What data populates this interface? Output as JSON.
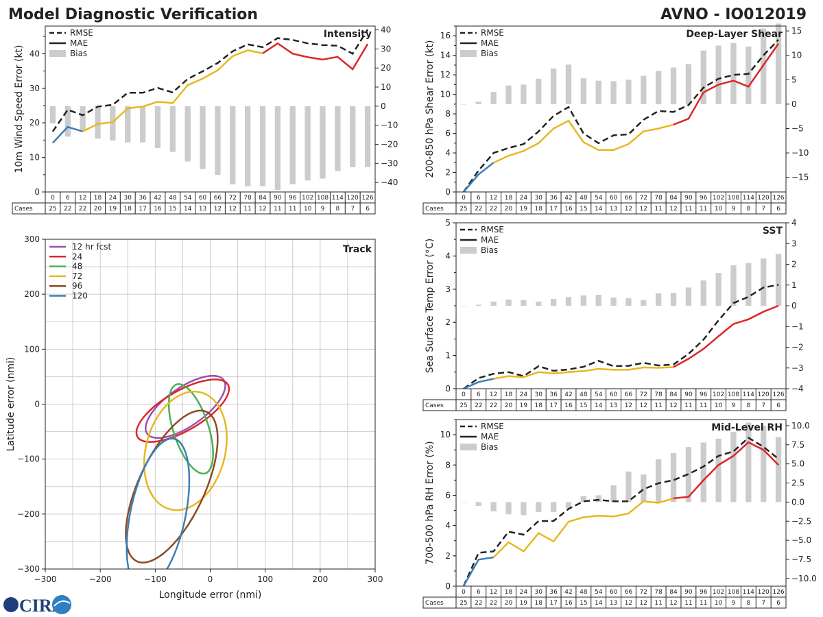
{
  "header": {
    "title": "Model Diagnostic Verification",
    "model_id": "AVNO - IO012019"
  },
  "colors": {
    "red": "#dc2626",
    "yellow": "#e6b81f",
    "blue": "#3a7fb8",
    "bias": "#cccccc",
    "rmse": "#222222",
    "purple": "#9a4fb1",
    "green": "#4caf50",
    "brown": "#8b4a24",
    "track_blue": "#3a7fb8"
  },
  "legend": {
    "rmse": "RMSE",
    "mae": "MAE",
    "bias": "Bias"
  },
  "cases_label": "Cases",
  "leads": [
    0,
    6,
    12,
    18,
    24,
    30,
    36,
    42,
    48,
    54,
    60,
    66,
    72,
    78,
    84,
    90,
    96,
    102,
    108,
    114,
    120,
    126
  ],
  "cases": [
    25,
    22,
    22,
    20,
    19,
    18,
    17,
    16,
    15,
    14,
    13,
    12,
    12,
    11,
    12,
    11,
    11,
    10,
    9,
    8,
    7,
    6
  ],
  "logo": {
    "text": "CIRA"
  },
  "chart_data": [
    {
      "id": "intensity",
      "type": "line",
      "title": "Intensity",
      "ylabel": "10m Wind Speed Error (kt)",
      "ylim": [
        0,
        48
      ],
      "yticks": [
        0,
        10,
        20,
        30,
        40
      ],
      "y2lim": [
        -45,
        42
      ],
      "y2ticks": [
        -40,
        -30,
        -20,
        -10,
        0,
        10,
        20,
        30,
        40
      ],
      "rmse": [
        17.5,
        23.8,
        22.2,
        24.7,
        25.2,
        28.7,
        28.7,
        30.1,
        28.8,
        32.7,
        34.9,
        37.3,
        40.7,
        42.7,
        41.9,
        44.5,
        44.0,
        43.0,
        42.5,
        42.3,
        40.0,
        47.0
      ],
      "mae": [
        14.2,
        18.8,
        17.5,
        19.7,
        20.2,
        24.2,
        24.7,
        26.1,
        25.7,
        30.9,
        32.8,
        35.2,
        39.3,
        41.0,
        40.1,
        43.0,
        40.0,
        39.0,
        38.3,
        39.1,
        35.5,
        42.8
      ],
      "bias": [
        -9,
        -16,
        -13,
        -17,
        -18,
        -19,
        -19,
        -22,
        -24,
        -29,
        -33,
        -36,
        -41,
        -42,
        -42,
        -44,
        -41,
        -39,
        -38,
        -34,
        -32,
        -32
      ]
    },
    {
      "id": "shear",
      "type": "line",
      "title": "Deep-Layer Shear",
      "ylabel": "200-850 hPa Shear Error (kt)",
      "ylim": [
        0,
        17
      ],
      "yticks": [
        0,
        2,
        4,
        6,
        8,
        10,
        12,
        14,
        16
      ],
      "y2lim": [
        -18,
        16
      ],
      "y2ticks": [
        -15,
        -10,
        -5,
        0,
        5,
        10,
        15
      ],
      "rmse": [
        0.0,
        2.2,
        4.0,
        4.5,
        4.9,
        6.2,
        7.8,
        8.7,
        6.0,
        5.0,
        5.8,
        5.9,
        7.4,
        8.3,
        8.2,
        8.9,
        10.7,
        11.6,
        12.0,
        12.1,
        14.0,
        15.6
      ],
      "mae": [
        0.0,
        1.8,
        3.0,
        3.7,
        4.2,
        5.0,
        6.5,
        7.3,
        5.1,
        4.3,
        4.3,
        4.9,
        6.2,
        6.5,
        6.9,
        7.5,
        10.2,
        11.0,
        11.4,
        10.8,
        13.0,
        15.2
      ],
      "bias": [
        0,
        0.5,
        2.5,
        3.8,
        4.0,
        5.2,
        7.3,
        8.1,
        5.3,
        4.8,
        4.7,
        5.0,
        5.8,
        6.8,
        7.5,
        8.2,
        11.0,
        12.0,
        12.5,
        11.8,
        15.5,
        16.5
      ]
    },
    {
      "id": "sst",
      "type": "line",
      "title": "SST",
      "ylabel": "Sea Surface Temp Error (°C)",
      "ylim": [
        0,
        5
      ],
      "yticks": [
        0,
        1,
        2,
        3,
        4,
        5
      ],
      "y2lim": [
        -4,
        4
      ],
      "y2ticks": [
        -4,
        -3,
        -2,
        -1,
        0,
        1,
        2,
        3,
        4
      ],
      "rmse": [
        0.0,
        0.32,
        0.45,
        0.5,
        0.38,
        0.68,
        0.54,
        0.58,
        0.66,
        0.84,
        0.68,
        0.69,
        0.78,
        0.7,
        0.73,
        1.05,
        1.48,
        2.06,
        2.58,
        2.77,
        3.05,
        3.13
      ],
      "mae": [
        0.0,
        0.2,
        0.3,
        0.38,
        0.35,
        0.5,
        0.46,
        0.5,
        0.53,
        0.6,
        0.57,
        0.57,
        0.64,
        0.63,
        0.65,
        0.9,
        1.2,
        1.58,
        1.95,
        2.09,
        2.32,
        2.5
      ],
      "bias": [
        0,
        0.05,
        0.2,
        0.3,
        0.27,
        0.2,
        0.33,
        0.42,
        0.5,
        0.53,
        0.4,
        0.36,
        0.28,
        0.6,
        0.62,
        0.88,
        1.22,
        1.58,
        1.95,
        2.05,
        2.28,
        2.5
      ]
    },
    {
      "id": "rh",
      "type": "line",
      "title": "Mid-Level RH",
      "ylabel": "700-500 hPa RH Error (%)",
      "ylim": [
        0,
        11
      ],
      "yticks": [
        0,
        2,
        4,
        6,
        8,
        10
      ],
      "y2lim": [
        -11,
        10.8
      ],
      "y2ticks": [
        -10.0,
        -7.5,
        -5.0,
        -2.5,
        0.0,
        2.5,
        5.0,
        7.5,
        10.0
      ],
      "rmse": [
        0.0,
        2.2,
        2.3,
        3.6,
        3.4,
        4.3,
        4.3,
        5.1,
        5.6,
        5.7,
        5.6,
        5.6,
        6.4,
        6.8,
        7.0,
        7.4,
        7.9,
        8.6,
        8.9,
        9.8,
        9.2,
        8.4
      ],
      "mae": [
        0.0,
        1.75,
        1.9,
        2.9,
        2.3,
        3.5,
        2.95,
        4.25,
        4.55,
        4.65,
        4.6,
        4.8,
        5.6,
        5.5,
        5.8,
        5.9,
        7.0,
        8.0,
        8.6,
        9.5,
        9.0,
        8.0
      ],
      "bias": [
        0,
        -0.5,
        -1.2,
        -1.6,
        -1.7,
        -1.3,
        -1.3,
        -0.8,
        0.8,
        0.9,
        2.2,
        4.0,
        3.6,
        5.6,
        6.4,
        7.2,
        7.8,
        8.3,
        9.2,
        10.4,
        10.0,
        8.5
      ]
    },
    {
      "id": "track",
      "type": "scatter",
      "title": "Track",
      "xlabel": "Longitude error (nmi)",
      "ylabel": "Latitude error (nmi)",
      "xlim": [
        -300,
        300
      ],
      "ylim": [
        -300,
        300
      ],
      "xticks": [
        -300,
        -200,
        -100,
        0,
        100,
        200,
        300
      ],
      "yticks": [
        -300,
        -200,
        -100,
        0,
        100,
        200,
        300
      ],
      "ellipses": [
        {
          "name": "12 hr fcst",
          "color": "#9a4fb1",
          "cx": -45,
          "cy": -5,
          "rx": 85,
          "ry": 35,
          "angle": -35
        },
        {
          "name": "24",
          "color": "#dc2626",
          "cx": -50,
          "cy": -12,
          "rx": 95,
          "ry": 36,
          "angle": -30
        },
        {
          "name": "48",
          "color": "#4caf50",
          "cx": -35,
          "cy": -45,
          "rx": 32,
          "ry": 85,
          "angle": -18
        },
        {
          "name": "72",
          "color": "#e6b81f",
          "cx": -45,
          "cy": -85,
          "rx": 110,
          "ry": 72,
          "angle": -75
        },
        {
          "name": "96",
          "color": "#8b4a24",
          "cx": -70,
          "cy": -150,
          "rx": 150,
          "ry": 60,
          "angle": -65
        },
        {
          "name": "120",
          "color": "#3a7fb8",
          "cx": -95,
          "cy": -200,
          "rx": 140,
          "ry": 50,
          "angle": -78
        }
      ]
    }
  ]
}
